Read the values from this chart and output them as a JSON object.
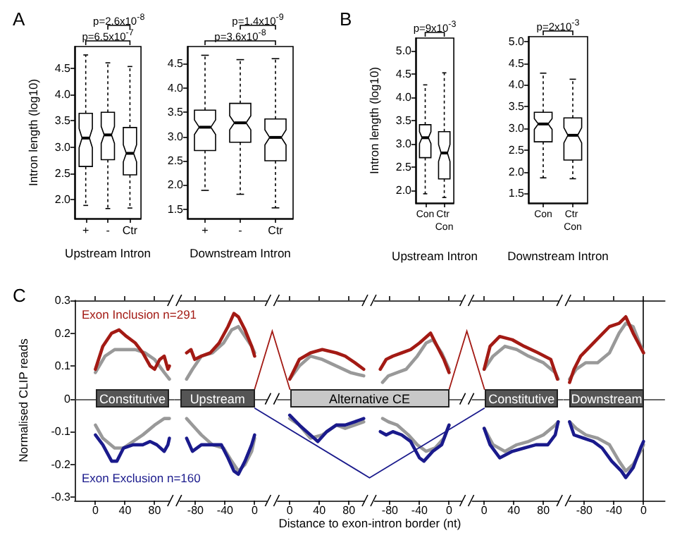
{
  "chart_data": [
    {
      "type": "box",
      "title": "A",
      "categories": [
        "+",
        "-",
        "Ctr"
      ],
      "xlabel": "Upstream Intron",
      "ylabel": "Intron length (log10)",
      "ylim": [
        1.64,
        4.91
      ],
      "yticks": [
        {
          "value": 2,
          "label": "2.0"
        },
        {
          "value": 2.5,
          "label": "2.5"
        },
        {
          "value": 3,
          "label": "3.0"
        },
        {
          "value": 3.5,
          "label": "3.5"
        },
        {
          "value": 4,
          "label": "4.0"
        },
        {
          "value": 4.5,
          "label": "4.5"
        }
      ],
      "boxes": [
        {
          "low": 1.89,
          "q1": 2.63,
          "median": 3.17,
          "q3": 3.64,
          "high": 4.75
        },
        {
          "low": 1.83,
          "q1": 2.76,
          "median": 3.23,
          "q3": 3.66,
          "high": 4.6
        },
        {
          "low": 1.84,
          "q1": 2.47,
          "median": 2.88,
          "q3": 3.37,
          "high": 4.53
        }
      ],
      "annotations": [
        "p=6.5x10$^{-7}$",
        "p=2.6x10$^{-8}$"
      ]
    },
    {
      "type": "box",
      "categories": [
        "+",
        "-",
        "Ctr"
      ],
      "xlabel": "Downstream Intron",
      "ylim": [
        1.31,
        4.85
      ],
      "yticks": [
        {
          "value": 1.5,
          "label": "1.5"
        },
        {
          "value": 2,
          "label": "2.0"
        },
        {
          "value": 2.5,
          "label": "2.5"
        },
        {
          "value": 3,
          "label": "3.0"
        },
        {
          "value": 3.5,
          "label": "3.5"
        },
        {
          "value": 4,
          "label": "4.0"
        },
        {
          "value": 4.5,
          "label": "4.5"
        }
      ],
      "boxes": [
        {
          "low": 1.89,
          "q1": 2.71,
          "median": 3.19,
          "q3": 3.54,
          "high": 4.67
        },
        {
          "low": 1.81,
          "q1": 2.88,
          "median": 3.28,
          "q3": 3.68,
          "high": 4.58
        },
        {
          "low": 1.53,
          "q1": 2.5,
          "median": 2.98,
          "q3": 3.36,
          "high": 4.6
        }
      ],
      "annotations": [
        "p=3.6x10$^{-8}$",
        "p=1.4x10$^{-9}$"
      ]
    },
    {
      "type": "box",
      "title": "B",
      "categories": [
        "Con",
        "Ctr Con"
      ],
      "xlabel": "Upstream Intron",
      "ylabel": "Intron length (log10)",
      "ylim": [
        1.72,
        5.28
      ],
      "yticks": [
        {
          "value": 2,
          "label": "2.0"
        },
        {
          "value": 2.5,
          "label": "2.5"
        },
        {
          "value": 3,
          "label": "3.0"
        },
        {
          "value": 3.5,
          "label": "3.5"
        },
        {
          "value": 4,
          "label": "4.0"
        },
        {
          "value": 4.5,
          "label": "4.5"
        },
        {
          "value": 5,
          "label": "5.0"
        }
      ],
      "boxes": [
        {
          "low": 1.92,
          "q1": 2.7,
          "median": 3.13,
          "q3": 3.41,
          "high": 4.27
        },
        {
          "low": 1.84,
          "q1": 2.24,
          "median": 2.8,
          "q3": 3.26,
          "high": 4.53
        }
      ],
      "annotations": [
        "p=9x10$^{-3}$"
      ]
    },
    {
      "type": "box",
      "categories": [
        "Con",
        "Ctr Con"
      ],
      "xlabel": "Downstream Intron",
      "ylim": [
        1.28,
        5.11
      ],
      "yticks": [
        {
          "value": 1.5,
          "label": "1.5"
        },
        {
          "value": 2,
          "label": "2.0"
        },
        {
          "value": 2.5,
          "label": "2.5"
        },
        {
          "value": 3,
          "label": "3.0"
        },
        {
          "value": 3.5,
          "label": "3.5"
        },
        {
          "value": 4,
          "label": "4.0"
        },
        {
          "value": 4.5,
          "label": "4.5"
        },
        {
          "value": 5,
          "label": "5.0"
        }
      ],
      "boxes": [
        {
          "low": 1.86,
          "q1": 2.69,
          "median": 3.1,
          "q3": 3.37,
          "high": 4.27
        },
        {
          "low": 1.84,
          "q1": 2.27,
          "median": 2.84,
          "q3": 3.24,
          "high": 4.13
        }
      ],
      "annotations": [
        "p=2x10$^{-3}$"
      ]
    },
    {
      "type": "line",
      "title": "C",
      "ylabel": "Normalised CLIP reads",
      "marker": "none",
      "xlim": [
        -28,
        107
      ],
      "xticks": [
        0,
        40,
        80
      ],
      "ylim": [
        -0.31,
        0.3
      ],
      "yticks": [
        -0.3,
        -0.2,
        -0.1,
        0,
        0.1,
        0.2,
        0.3
      ],
      "ref_lines": [
        {
          "axis": "y",
          "value": 0,
          "color": "#333333"
        }
      ],
      "annotations": [
        "Constitutive"
      ],
      "series": [
        {
          "color": "#999999",
          "x": [
            0,
            13,
            26,
            42,
            54,
            67,
            80,
            93,
            100
          ],
          "values": [
            0.08,
            0.13,
            0.15,
            0.15,
            0.15,
            0.14,
            0.12,
            0.08,
            0.06
          ]
        },
        {
          "color": "#999999",
          "x": [
            0,
            10,
            26,
            38,
            51,
            64,
            80,
            93,
            100
          ],
          "values": [
            -0.08,
            -0.12,
            -0.15,
            -0.15,
            -0.13,
            -0.11,
            -0.08,
            -0.06,
            -0.06
          ]
        },
        {
          "name": "Exon Inclusion n=291",
          "color": "#a31a14",
          "x": [
            0,
            10,
            22,
            32,
            42,
            54,
            64,
            74,
            80,
            87,
            93,
            98,
            100
          ],
          "values": [
            0.09,
            0.16,
            0.2,
            0.21,
            0.19,
            0.17,
            0.14,
            0.1,
            0.09,
            0.12,
            0.13,
            0.09,
            0.1
          ]
        },
        {
          "name": "Exon Exclusion n=160",
          "color": "#1a1a8c",
          "x": [
            0,
            10,
            22,
            29,
            38,
            51,
            64,
            74,
            83,
            93,
            98,
            100
          ],
          "values": [
            -0.11,
            -0.14,
            -0.19,
            -0.19,
            -0.15,
            -0.14,
            -0.14,
            -0.13,
            -0.14,
            -0.16,
            -0.14,
            -0.12
          ]
        }
      ]
    },
    {
      "type": "line",
      "marker": "none",
      "tick_labels": "x",
      "xlim": [
        -108,
        24
      ],
      "xticks": [
        -80,
        -40,
        0
      ],
      "ylim": [
        -0.31,
        0.3
      ],
      "ref_lines": [
        {
          "axis": "y",
          "value": 0,
          "color": "#333333"
        }
      ],
      "annotations": [
        "Upstream"
      ],
      "series": [
        {
          "color": "#999999",
          "x": [
            -92,
            -84,
            -72,
            -57,
            -42,
            -31,
            -22,
            -13,
            -4,
            0
          ],
          "values": [
            0.06,
            0.09,
            0.13,
            0.14,
            0.17,
            0.21,
            0.22,
            0.19,
            0.16,
            0.14
          ]
        },
        {
          "color": "#999999",
          "x": [
            -92,
            -84,
            -72,
            -57,
            -42,
            -31,
            -22,
            -13,
            -4,
            0
          ],
          "values": [
            -0.06,
            -0.08,
            -0.11,
            -0.14,
            -0.15,
            -0.19,
            -0.22,
            -0.2,
            -0.16,
            -0.12
          ]
        },
        {
          "color": "#a31a14",
          "x": [
            -92,
            -86,
            -81,
            -72,
            -60,
            -48,
            -36,
            -28,
            -22,
            -13,
            -4,
            0
          ],
          "values": [
            0.14,
            0.15,
            0.12,
            0.13,
            0.14,
            0.17,
            0.22,
            0.26,
            0.25,
            0.21,
            0.16,
            0.13
          ]
        },
        {
          "color": "#1a1a8c",
          "x": [
            -92,
            -84,
            -72,
            -57,
            -45,
            -36,
            -28,
            -22,
            -13,
            -4,
            0
          ],
          "values": [
            -0.12,
            -0.16,
            -0.14,
            -0.14,
            -0.14,
            -0.18,
            -0.22,
            -0.23,
            -0.19,
            -0.14,
            -0.11
          ]
        }
      ]
    },
    {
      "type": "line",
      "xlabel": "Distance to exon-intron border (nt)",
      "marker": "none",
      "tick_labels": "x",
      "xlim": [
        -24,
        107
      ],
      "xticks": [
        0,
        40,
        80
      ],
      "ylim": [
        -0.31,
        0.3
      ],
      "ref_lines": [
        {
          "axis": "y",
          "value": 0,
          "color": "#333333"
        }
      ],
      "annotations": [
        "Alternative CE"
      ],
      "series": [
        {
          "color": "#999999",
          "x": [
            0,
            13,
            28,
            44,
            63,
            82,
            100
          ],
          "values": [
            0.06,
            0.1,
            0.13,
            0.12,
            0.1,
            0.08,
            0.07
          ]
        },
        {
          "color": "#999999",
          "x": [
            0,
            13,
            28,
            44,
            63,
            75,
            88,
            100
          ],
          "values": [
            -0.06,
            -0.08,
            -0.12,
            -0.11,
            -0.08,
            -0.09,
            -0.08,
            -0.07
          ]
        },
        {
          "color": "#a31a14",
          "x": [
            0,
            13,
            28,
            44,
            63,
            75,
            88,
            100
          ],
          "values": [
            0.06,
            0.12,
            0.14,
            0.15,
            0.14,
            0.13,
            0.11,
            0.09
          ]
        },
        {
          "color": "#1a1a8c",
          "x": [
            0,
            13,
            28,
            38,
            50,
            63,
            75,
            88,
            100
          ],
          "values": [
            -0.05,
            -0.08,
            -0.11,
            -0.13,
            -0.1,
            -0.08,
            -0.08,
            -0.07,
            -0.06
          ]
        }
      ]
    },
    {
      "type": "line",
      "marker": "none",
      "tick_labels": "x",
      "xlim": [
        -108,
        24
      ],
      "xticks": [
        -80,
        -40,
        0
      ],
      "ylim": [
        -0.31,
        0.3
      ],
      "ref_lines": [
        {
          "axis": "y",
          "value": 0,
          "color": "#333333"
        }
      ],
      "series": [
        {
          "color": "#999999",
          "x": [
            -90,
            -82,
            -70,
            -58,
            -43,
            -31,
            -22,
            -10,
            0
          ],
          "values": [
            0.05,
            0.07,
            0.08,
            0.09,
            0.13,
            0.17,
            0.18,
            0.14,
            0.09
          ]
        },
        {
          "color": "#999999",
          "x": [
            -90,
            -82,
            -70,
            -55,
            -43,
            -31,
            -19,
            -7,
            0
          ],
          "values": [
            -0.06,
            -0.07,
            -0.08,
            -0.11,
            -0.14,
            -0.16,
            -0.15,
            -0.12,
            -0.08
          ]
        },
        {
          "color": "#a31a14",
          "x": [
            -93,
            -85,
            -76,
            -64,
            -52,
            -40,
            -25,
            -16,
            -7,
            0
          ],
          "values": [
            0.09,
            0.12,
            0.13,
            0.14,
            0.15,
            0.17,
            0.2,
            0.16,
            0.12,
            0.08
          ]
        },
        {
          "color": "#1a1a8c",
          "x": [
            -93,
            -85,
            -76,
            -64,
            -52,
            -40,
            -34,
            -22,
            -10,
            0
          ],
          "values": [
            -0.1,
            -0.11,
            -0.1,
            -0.11,
            -0.13,
            -0.18,
            -0.19,
            -0.16,
            -0.14,
            -0.08
          ]
        }
      ]
    },
    {
      "type": "line",
      "marker": "none",
      "tick_labels": "x",
      "xlim": [
        -24,
        107
      ],
      "xticks": [
        0,
        40,
        80
      ],
      "ylim": [
        -0.31,
        0.3
      ],
      "ref_lines": [
        {
          "axis": "y",
          "value": 0,
          "color": "#333333"
        }
      ],
      "annotations": [
        "Constitutive"
      ],
      "series": [
        {
          "color": "#999999",
          "x": [
            0,
            12,
            28,
            44,
            60,
            80,
            96,
            100
          ],
          "values": [
            0.09,
            0.13,
            0.16,
            0.15,
            0.13,
            0.11,
            0.08,
            0.06
          ]
        },
        {
          "color": "#999999",
          "x": [
            0,
            12,
            28,
            44,
            60,
            80,
            96,
            100
          ],
          "values": [
            -0.09,
            -0.14,
            -0.16,
            -0.14,
            -0.13,
            -0.11,
            -0.08,
            -0.07
          ]
        },
        {
          "color": "#a31a14",
          "x": [
            0,
            8,
            21,
            38,
            54,
            73,
            90,
            99
          ],
          "values": [
            0.09,
            0.16,
            0.19,
            0.18,
            0.16,
            0.14,
            0.12,
            0.06
          ]
        },
        {
          "color": "#1a1a8c",
          "x": [
            0,
            8,
            21,
            38,
            54,
            70,
            86,
            96,
            100
          ],
          "values": [
            -0.09,
            -0.14,
            -0.18,
            -0.16,
            -0.15,
            -0.14,
            -0.14,
            -0.11,
            -0.07
          ]
        }
      ]
    },
    {
      "type": "line",
      "marker": "none",
      "tick_labels": "x",
      "xlim": [
        -108,
        29
      ],
      "xticks": [
        -80,
        -40,
        0
      ],
      "ylim": [
        -0.31,
        0.3
      ],
      "ref_lines": [
        {
          "axis": "y",
          "value": 0,
          "color": "#333333"
        }
      ],
      "annotations": [
        "Downstream"
      ],
      "series": [
        {
          "color": "#999999",
          "x": [
            -100,
            -91,
            -78,
            -62,
            -46,
            -33,
            -24,
            -14,
            0
          ],
          "values": [
            0.06,
            0.09,
            0.11,
            0.11,
            0.14,
            0.2,
            0.23,
            0.22,
            0.14
          ]
        },
        {
          "color": "#999999",
          "x": [
            -100,
            -91,
            -78,
            -62,
            -46,
            -33,
            -24,
            -14,
            -4,
            0
          ],
          "values": [
            -0.07,
            -0.09,
            -0.11,
            -0.12,
            -0.14,
            -0.19,
            -0.22,
            -0.2,
            -0.16,
            -0.14
          ]
        },
        {
          "color": "#a31a14",
          "x": [
            -100,
            -94,
            -85,
            -72,
            -59,
            -46,
            -33,
            -24,
            -14,
            0
          ],
          "values": [
            0.05,
            0.09,
            0.13,
            0.16,
            0.19,
            0.22,
            0.23,
            0.25,
            0.2,
            0.14
          ]
        },
        {
          "color": "#1a1a8c",
          "x": [
            -100,
            -94,
            -81,
            -68,
            -56,
            -43,
            -30,
            -24,
            -14,
            -4,
            0
          ],
          "values": [
            -0.07,
            -0.11,
            -0.12,
            -0.13,
            -0.15,
            -0.19,
            -0.22,
            -0.24,
            -0.21,
            -0.15,
            -0.13
          ]
        }
      ]
    }
  ]
}
